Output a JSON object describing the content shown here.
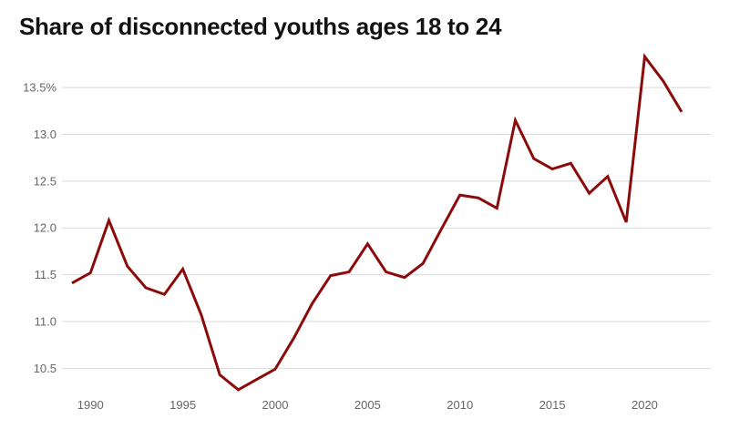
{
  "title": "Share of disconnected youths ages 18 to 24",
  "colors": {
    "line": "#8b0a0a",
    "grid": "#d9d9d9",
    "tick_text": "#666666",
    "title_text": "#121212"
  },
  "chart_data": {
    "type": "line",
    "title": "Share of disconnected youths ages 18 to 24",
    "xlabel": "",
    "ylabel": "",
    "xlim": [
      1989,
      2022
    ],
    "ylim": [
      10.25,
      13.9
    ],
    "grid": true,
    "y_ticks": [
      10.5,
      11.0,
      11.5,
      12.0,
      12.5,
      13.0,
      13.5
    ],
    "y_tick_labels": [
      "10.5",
      "11.0",
      "11.5",
      "12.0",
      "12.5",
      "13.0",
      "13.5%"
    ],
    "x_ticks": [
      1990,
      1995,
      2000,
      2005,
      2010,
      2015,
      2020
    ],
    "x_tick_labels": [
      "1990",
      "1995",
      "2000",
      "2005",
      "2010",
      "2015",
      "2020"
    ],
    "series": [
      {
        "x": [
          1989,
          1990,
          1991,
          1992,
          1993,
          1994,
          1995,
          1996,
          1997,
          1998,
          1999,
          2000,
          2001,
          2002,
          2003,
          2004,
          2005,
          2006,
          2007,
          2008,
          2009,
          2010,
          2011,
          2012,
          2013,
          2014,
          2015,
          2016,
          2017,
          2018,
          2019,
          2020,
          2021,
          2022
        ],
        "values": [
          11.41,
          11.52,
          12.08,
          11.59,
          11.36,
          11.29,
          11.56,
          11.07,
          10.43,
          10.27,
          10.38,
          10.49,
          10.82,
          11.19,
          11.49,
          11.53,
          11.83,
          11.53,
          11.47,
          11.62,
          11.99,
          12.35,
          12.32,
          12.21,
          13.15,
          12.74,
          12.63,
          12.69,
          12.37,
          12.55,
          12.06,
          13.83,
          13.57,
          13.24
        ]
      }
    ]
  }
}
